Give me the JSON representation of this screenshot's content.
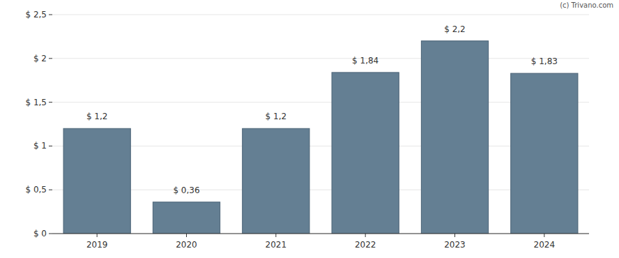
{
  "chart_data": {
    "type": "bar",
    "annotations": [
      "(c) Trivano.com"
    ],
    "categories": [
      "2019",
      "2020",
      "2021",
      "2022",
      "2023",
      "2024"
    ],
    "values": [
      1.2,
      0.36,
      1.2,
      1.84,
      2.2,
      1.83
    ],
    "value_labels": [
      "$ 1,2",
      "$ 0,36",
      "$ 1,2",
      "$ 1,84",
      "$ 2,2",
      "$ 1,83"
    ],
    "data_labels": true,
    "color": "#647f93",
    "ylim": [
      0,
      2.5
    ],
    "yticks": [
      {
        "value": 0,
        "label": "$ 0"
      },
      {
        "value": 0.5,
        "label": "$ 0,5"
      },
      {
        "value": 1,
        "label": "$ 1"
      },
      {
        "value": 1.5,
        "label": "$ 1,5"
      },
      {
        "value": 2,
        "label": "$ 2"
      },
      {
        "value": 2.5,
        "label": "$ 2,5"
      }
    ],
    "grid": true
  }
}
